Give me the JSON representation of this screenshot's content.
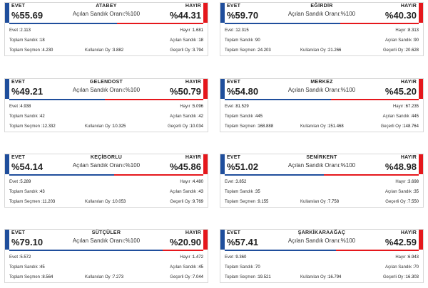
{
  "labels": {
    "evet": "EVET",
    "hayir": "HAYIR",
    "acilan_sandik_orani": "Açılan Sandık Oranı:",
    "evet_count": "Evet :",
    "hayir_count": "Hayır :",
    "toplam_sandik": "Toplam Sandık :",
    "acilan_sandik": "Açılan Sandık :",
    "toplam_secmen": "Toplam Seçmen :",
    "kullanilan_oy": "Kullanılan Oy :",
    "gecerli_oy": "Geçerli Oy :"
  },
  "districts": [
    {
      "name": "ATABEY",
      "rate": "%100",
      "evet_pct": "%55.69",
      "hayir_pct": "%44.31",
      "evet_share": 55.69,
      "evet": "2.113",
      "hayir": "1.681",
      "toplam_sandik": "18",
      "acilan_sandik": "18",
      "toplam_secmen": "4.230",
      "kullanilan_oy": "3.882",
      "gecerli_oy": "3.794"
    },
    {
      "name": "EĞİRDİR",
      "rate": "%100",
      "evet_pct": "%59.70",
      "hayir_pct": "%40.30",
      "evet_share": 59.7,
      "evet": "12.315",
      "hayir": "8.313",
      "toplam_sandik": "90",
      "acilan_sandik": "90",
      "toplam_secmen": "24.203",
      "kullanilan_oy": "21.266",
      "gecerli_oy": "20.628"
    },
    {
      "name": "GELENDOST",
      "rate": "%100",
      "evet_pct": "%49.21",
      "hayir_pct": "%50.79",
      "evet_share": 49.21,
      "evet": "4.938",
      "hayir": "5.096",
      "toplam_sandik": "42",
      "acilan_sandik": "42",
      "toplam_secmen": "12.332",
      "kullanilan_oy": "10.325",
      "gecerli_oy": "10.034"
    },
    {
      "name": "MERKEZ",
      "rate": "%100",
      "evet_pct": "%54.80",
      "hayir_pct": "%45.20",
      "evet_share": 54.8,
      "evet": "81.529",
      "hayir": "67.235",
      "toplam_sandik": "445",
      "acilan_sandik": "445",
      "toplam_secmen": "168.888",
      "kullanilan_oy": "151.468",
      "gecerli_oy": "148.764"
    },
    {
      "name": "KEÇİBORLU",
      "rate": "%100",
      "evet_pct": "%54.14",
      "hayir_pct": "%45.86",
      "evet_share": 54.14,
      "evet": "5.289",
      "hayir": "4.480",
      "toplam_sandik": "43",
      "acilan_sandik": "43",
      "toplam_secmen": "11.203",
      "kullanilan_oy": "10.053",
      "gecerli_oy": "9.769"
    },
    {
      "name": "SENİRKENT",
      "rate": "%100",
      "evet_pct": "%51.02",
      "hayir_pct": "%48.98",
      "evet_share": 51.02,
      "evet": "3.852",
      "hayir": "3.698",
      "toplam_sandik": "35",
      "acilan_sandik": "35",
      "toplam_secmen": "9.155",
      "kullanilan_oy": "7.758",
      "gecerli_oy": "7.550"
    },
    {
      "name": "SÜTÇÜLER",
      "rate": "%100",
      "evet_pct": "%79.10",
      "hayir_pct": "%20.90",
      "evet_share": 79.1,
      "evet": "5.572",
      "hayir": "1.472",
      "toplam_sandik": "45",
      "acilan_sandik": "45",
      "toplam_secmen": "8.564",
      "kullanilan_oy": "7.273",
      "gecerli_oy": "7.044"
    },
    {
      "name": "ŞARKİKARAAĞAÇ",
      "rate": "%100",
      "evet_pct": "%57.41",
      "hayir_pct": "%42.59",
      "evet_share": 57.41,
      "evet": "9.360",
      "hayir": "6.943",
      "toplam_sandik": "70",
      "acilan_sandik": "70",
      "toplam_secmen": "19.521",
      "kullanilan_oy": "16.794",
      "gecerli_oy": "16.303"
    }
  ],
  "colors": {
    "evet": "#1f4e9c",
    "hayir": "#e5171c"
  }
}
